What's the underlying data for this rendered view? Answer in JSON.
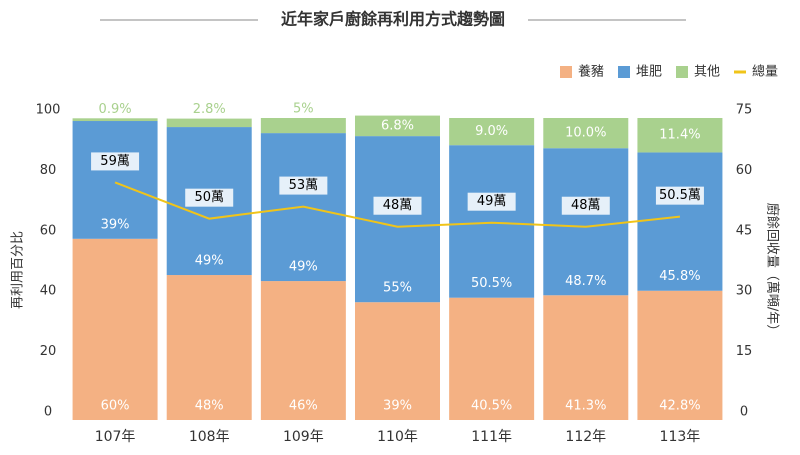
{
  "chart_data": {
    "type": "stacked-bar-line",
    "title": "近年家戶廚餘再利用方式趨勢圖",
    "y_label": "再利用百分比",
    "y2_label": "廚餘回收量（萬噸/年）",
    "categories": [
      "107年",
      "108年",
      "109年",
      "110年",
      "111年",
      "112年",
      "113年"
    ],
    "series": [
      {
        "name": "養豬",
        "color": "#f4b183",
        "values": [
          60,
          48,
          46,
          39,
          40.5,
          41.3,
          42.8
        ],
        "value_labels": [
          "60%",
          "48%",
          "46%",
          "39%",
          "40.5%",
          "41.3%",
          "42.8%"
        ]
      },
      {
        "name": "堆肥",
        "color": "#5b9bd5",
        "values": [
          39,
          49,
          49,
          55,
          50.5,
          48.7,
          45.8
        ],
        "value_labels": [
          "39%",
          "49%",
          "49%",
          "55%",
          "50.5%",
          "48.7%",
          "45.8%"
        ]
      },
      {
        "name": "其他",
        "color": "#a9d18e",
        "values": [
          0.9,
          2.8,
          5,
          6.8,
          9.0,
          10.0,
          11.4
        ],
        "value_labels": [
          "0.9%",
          "2.8%",
          "5%",
          "6.8%",
          "9.0%",
          "10.0%",
          "11.4%"
        ]
      },
      {
        "name": "總量",
        "color": "#f0c419",
        "axis": "y2",
        "values": [
          59,
          50,
          53,
          48,
          49,
          48,
          50.5
        ],
        "value_labels": [
          "59萬",
          "50萬",
          "53萬",
          "48萬",
          "49萬",
          "48萬",
          "50.5萬"
        ]
      }
    ],
    "ylim": [
      0,
      100
    ],
    "yticks": [
      0,
      20,
      40,
      60,
      80,
      100
    ],
    "y2lim": [
      0,
      75
    ],
    "y2ticks": [
      0,
      15,
      30,
      45,
      60,
      75
    ],
    "grid": false,
    "legend": "top-right"
  }
}
